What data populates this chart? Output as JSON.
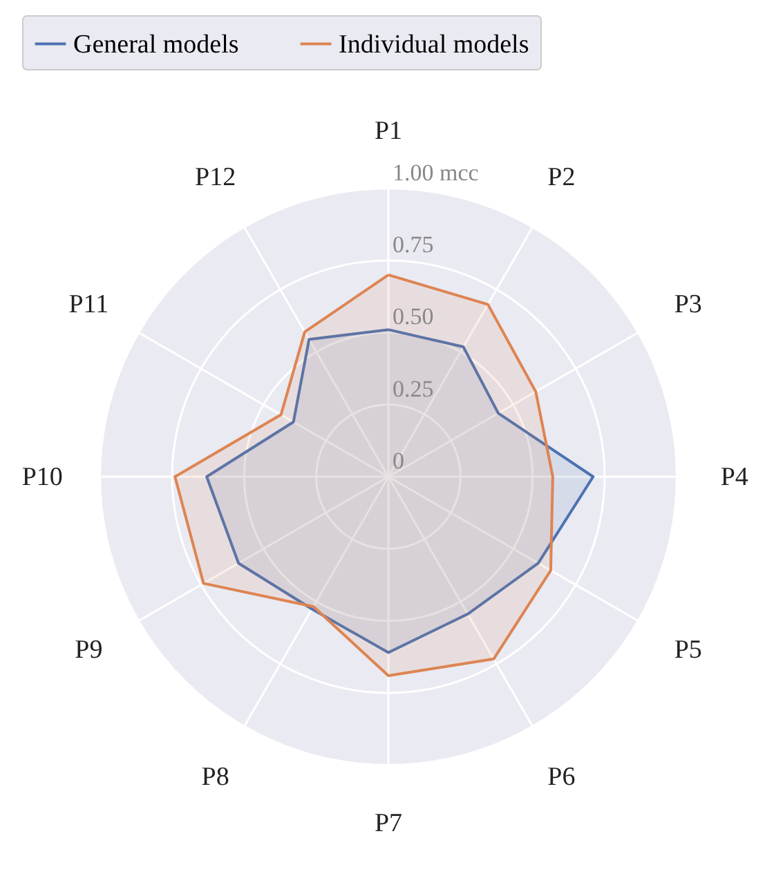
{
  "chart_data": {
    "type": "radar",
    "categories": [
      "P1",
      "P2",
      "P3",
      "P4",
      "P5",
      "P6",
      "P7",
      "P8",
      "P9",
      "P10",
      "P11",
      "P12"
    ],
    "series": [
      {
        "name": "General models",
        "color": "#4c72b0",
        "values": [
          0.51,
          0.52,
          0.44,
          0.71,
          0.6,
          0.55,
          0.61,
          0.53,
          0.6,
          0.63,
          0.38,
          0.55
        ]
      },
      {
        "name": "Individual models",
        "color": "#dd8452",
        "values": [
          0.7,
          0.69,
          0.59,
          0.57,
          0.65,
          0.73,
          0.69,
          0.52,
          0.74,
          0.74,
          0.43,
          0.58
        ]
      }
    ],
    "ylim": [
      0,
      1
    ],
    "yticks": [
      0,
      0.25,
      {
        "value": 0.5,
        "label": "0.50"
      },
      0.75,
      {
        "value": 1,
        "label": "1.00 mcc"
      }
    ],
    "grid": true,
    "legend": "top"
  }
}
